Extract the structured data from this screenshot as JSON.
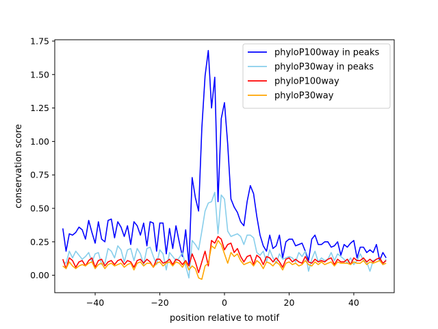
{
  "chart_data": {
    "type": "line",
    "title": "",
    "xlabel": "position relative to motif",
    "ylabel": "conservation score",
    "xlim": [
      -52.5,
      52.5
    ],
    "ylim": [
      -0.13,
      1.76
    ],
    "xticks": [
      -40,
      -20,
      0,
      20,
      40
    ],
    "yticks": [
      0.0,
      0.25,
      0.5,
      0.75,
      1.0,
      1.25,
      1.5,
      1.75
    ],
    "ytick_labels": [
      "0.00",
      "0.25",
      "0.50",
      "0.75",
      "1.00",
      "1.25",
      "1.50",
      "1.75"
    ],
    "grid": false,
    "legend_position": "top-right",
    "x": [
      -50,
      -49,
      -48,
      -47,
      -46,
      -45,
      -44,
      -43,
      -42,
      -41,
      -40,
      -39,
      -38,
      -37,
      -36,
      -35,
      -34,
      -33,
      -32,
      -31,
      -30,
      -29,
      -28,
      -27,
      -26,
      -25,
      -24,
      -23,
      -22,
      -21,
      -20,
      -19,
      -18,
      -17,
      -16,
      -15,
      -14,
      -13,
      -12,
      -11,
      -10,
      -9,
      -8,
      -7,
      -6,
      -5,
      -4,
      -3,
      -2,
      -1,
      0,
      1,
      2,
      3,
      4,
      5,
      6,
      7,
      8,
      9,
      10,
      11,
      12,
      13,
      14,
      15,
      16,
      17,
      18,
      19,
      20,
      21,
      22,
      23,
      24,
      25,
      26,
      27,
      28,
      29,
      30,
      31,
      32,
      33,
      34,
      35,
      36,
      37,
      38,
      39,
      40,
      41,
      42,
      43,
      44,
      45,
      46,
      47,
      48,
      49,
      50
    ],
    "series": [
      {
        "name": "phyloP100way in peaks",
        "color": "#0000ff",
        "values": [
          0.35,
          0.18,
          0.31,
          0.3,
          0.32,
          0.36,
          0.34,
          0.27,
          0.41,
          0.32,
          0.24,
          0.4,
          0.27,
          0.25,
          0.41,
          0.42,
          0.28,
          0.4,
          0.36,
          0.29,
          0.37,
          0.23,
          0.4,
          0.37,
          0.3,
          0.39,
          0.22,
          0.4,
          0.39,
          0.18,
          0.39,
          0.39,
          0.16,
          0.35,
          0.2,
          0.37,
          0.25,
          0.14,
          0.34,
          0.08,
          0.73,
          0.58,
          0.48,
          1.1,
          1.49,
          1.68,
          1.25,
          1.48,
          0.55,
          1.17,
          1.29,
          0.98,
          0.57,
          0.51,
          0.47,
          0.4,
          0.37,
          0.55,
          0.67,
          0.61,
          0.44,
          0.3,
          0.22,
          0.18,
          0.3,
          0.2,
          0.22,
          0.3,
          0.13,
          0.25,
          0.27,
          0.27,
          0.22,
          0.23,
          0.24,
          0.18,
          0.11,
          0.27,
          0.3,
          0.23,
          0.23,
          0.25,
          0.25,
          0.21,
          0.22,
          0.25,
          0.15,
          0.23,
          0.21,
          0.24,
          0.26,
          0.13,
          0.21,
          0.21,
          0.17,
          0.19,
          0.17,
          0.23,
          0.11,
          0.17,
          0.13
        ]
      },
      {
        "name": "phyloP30way in peaks",
        "color": "#87ceeb",
        "values": [
          0.1,
          0.09,
          0.18,
          0.13,
          0.18,
          0.15,
          0.12,
          0.14,
          0.17,
          0.1,
          0.16,
          0.17,
          0.08,
          0.09,
          0.2,
          0.18,
          0.13,
          0.22,
          0.19,
          0.1,
          0.19,
          0.2,
          0.11,
          0.2,
          0.16,
          0.08,
          0.2,
          0.21,
          0.14,
          0.08,
          0.19,
          0.16,
          0.04,
          0.17,
          0.14,
          0.11,
          0.13,
          0.17,
          0.07,
          -0.02,
          0.26,
          0.23,
          0.19,
          0.33,
          0.48,
          0.54,
          0.55,
          0.62,
          0.31,
          0.6,
          0.57,
          0.33,
          0.29,
          0.3,
          0.31,
          0.29,
          0.23,
          0.3,
          0.3,
          0.28,
          0.17,
          0.15,
          0.18,
          0.1,
          0.19,
          0.13,
          0.09,
          0.16,
          0.12,
          0.13,
          0.14,
          0.13,
          0.1,
          0.17,
          0.14,
          0.18,
          0.03,
          0.12,
          0.18,
          0.1,
          0.13,
          0.11,
          0.12,
          0.17,
          0.11,
          0.16,
          0.14,
          0.12,
          0.09,
          0.13,
          0.08,
          0.11,
          0.16,
          0.11,
          0.1,
          0.03,
          0.11,
          0.12,
          0.13,
          0.08,
          0.12
        ]
      },
      {
        "name": "phyloP100way",
        "color": "#ff0000",
        "values": [
          0.12,
          0.05,
          0.13,
          0.11,
          0.06,
          0.1,
          0.11,
          0.07,
          0.11,
          0.13,
          0.06,
          0.11,
          0.12,
          0.07,
          0.1,
          0.11,
          0.08,
          0.11,
          0.12,
          0.08,
          0.11,
          0.1,
          0.06,
          0.11,
          0.12,
          0.09,
          0.12,
          0.1,
          0.06,
          0.12,
          0.12,
          0.09,
          0.1,
          0.12,
          0.08,
          0.12,
          0.11,
          0.08,
          0.11,
          0.07,
          0.16,
          0.1,
          0.02,
          0.1,
          0.18,
          0.07,
          0.26,
          0.24,
          0.29,
          0.27,
          0.19,
          0.23,
          0.24,
          0.17,
          0.2,
          0.14,
          0.1,
          0.14,
          0.15,
          0.08,
          0.15,
          0.13,
          0.08,
          0.14,
          0.13,
          0.1,
          0.13,
          0.1,
          0.06,
          0.12,
          0.13,
          0.1,
          0.12,
          0.1,
          0.09,
          0.14,
          0.1,
          0.09,
          0.12,
          0.1,
          0.11,
          0.1,
          0.12,
          0.13,
          0.08,
          0.12,
          0.1,
          0.1,
          0.12,
          0.08,
          0.13,
          0.11,
          0.11,
          0.13,
          0.1,
          0.12,
          0.1,
          0.12,
          0.13,
          0.09,
          0.11
        ]
      },
      {
        "name": "phyloP30way",
        "color": "#ffa500",
        "values": [
          0.07,
          0.05,
          0.1,
          0.07,
          0.05,
          0.07,
          0.08,
          0.07,
          0.09,
          0.1,
          0.05,
          0.08,
          0.09,
          0.05,
          0.08,
          0.09,
          0.07,
          0.08,
          0.09,
          0.06,
          0.08,
          0.09,
          0.04,
          0.09,
          0.1,
          0.07,
          0.09,
          0.09,
          0.06,
          0.09,
          0.1,
          0.07,
          0.09,
          0.1,
          0.07,
          0.1,
          0.09,
          0.06,
          0.1,
          0.04,
          0.07,
          0.05,
          -0.02,
          -0.03,
          0.07,
          0.09,
          0.22,
          0.2,
          0.26,
          0.23,
          0.16,
          0.09,
          0.17,
          0.14,
          0.16,
          0.11,
          0.08,
          0.09,
          0.1,
          0.07,
          0.11,
          0.09,
          0.05,
          0.1,
          0.09,
          0.07,
          0.1,
          0.08,
          0.04,
          0.09,
          0.1,
          0.08,
          0.09,
          0.07,
          0.08,
          0.11,
          0.08,
          0.07,
          0.1,
          0.08,
          0.1,
          0.08,
          0.09,
          0.1,
          0.07,
          0.1,
          0.09,
          0.09,
          0.09,
          0.08,
          0.1,
          0.09,
          0.09,
          0.11,
          0.08,
          0.1,
          0.09,
          0.1,
          0.11,
          0.08,
          0.09
        ]
      }
    ]
  }
}
